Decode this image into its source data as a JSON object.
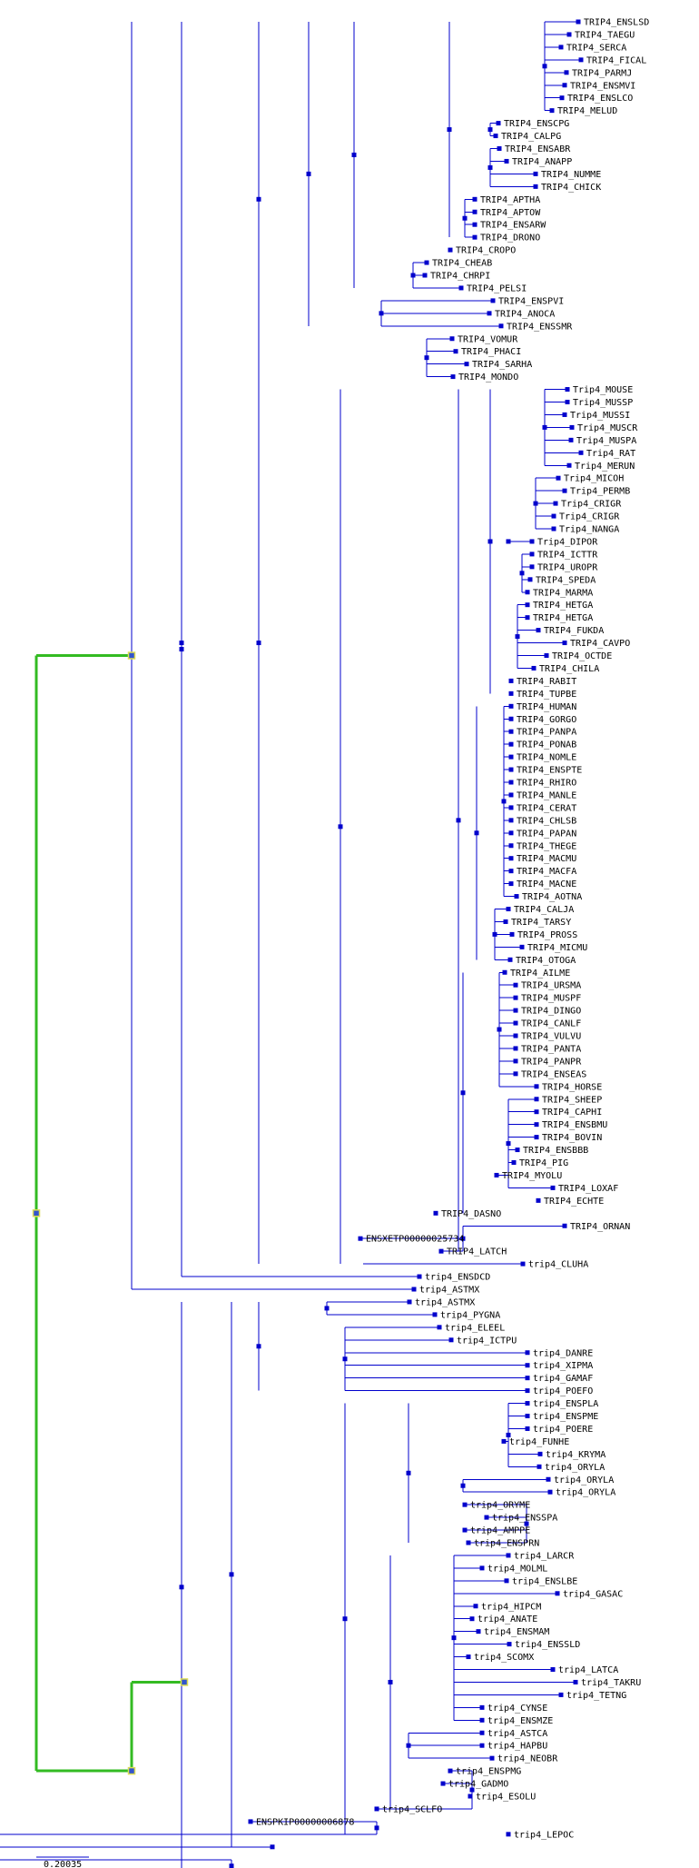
{
  "scale_bar": {
    "label": "0.20035"
  },
  "colors": {
    "branch": "#0000cc",
    "highlight": "#33bb22",
    "text": "#000000",
    "background": "#ffffff"
  },
  "leaves": [
    "TRIP4_ENSLSD",
    "TRIP4_TAEGU",
    "TRIP4_SERCA",
    "TRIP4_FICAL",
    "TRIP4_PARMJ",
    "TRIP4_ENSMVI",
    "TRIP4_ENSLCO",
    "TRIP4_MELUD",
    "TRIP4_ENSCPG",
    "TRIP4_CALPG",
    "TRIP4_ENSABR",
    "TRIP4_ANAPP",
    "TRIP4_NUMME",
    "TRIP4_CHICK",
    "TRIP4_APTHA",
    "TRIP4_APTOW",
    "TRIP4_ENSARW",
    "TRIP4_DRONO",
    "TRIP4_CROPO",
    "TRIP4_CHEAB",
    "TRIP4_CHRPI",
    "TRIP4_PELSI",
    "TRIP4_ENSPVI",
    "TRIP4_ANOCA",
    "TRIP4_ENSSMR",
    "TRIP4_VOMUR",
    "TRIP4_PHACI",
    "TRIP4_SARHA",
    "TRIP4_MONDO",
    "Trip4_MOUSE",
    "Trip4_MUSSP",
    "Trip4_MUSSI",
    "Trip4_MUSCR",
    "Trip4_MUSPA",
    "Trip4_RAT",
    "Trip4_MERUN",
    "Trip4_MICOH",
    "Trip4_PERMB",
    "Trip4_CRIGR",
    "Trip4_CRIGR",
    "Trip4_NANGA",
    "Trip4_DIPOR",
    "TRIP4_ICTTR",
    "TRIP4_UROPR",
    "TRIP4_SPEDA",
    "TRIP4_MARMA",
    "TRIP4_HETGA",
    "TRIP4_HETGA",
    "TRIP4_FUKDA",
    "TRIP4_CAVPO",
    "TRIP4_OCTDE",
    "TRIP4_CHILA",
    "TRIP4_RABIT",
    "TRIP4_TUPBE",
    "TRIP4_HUMAN",
    "TRIP4_GORGO",
    "TRIP4_PANPA",
    "TRIP4_PONAB",
    "TRIP4_NOMLE",
    "TRIP4_ENSPTE",
    "TRIP4_RHIRO",
    "TRIP4_MANLE",
    "TRIP4_CERAT",
    "TRIP4_CHLSB",
    "TRIP4_PAPAN",
    "TRIP4_THEGE",
    "TRIP4_MACMU",
    "TRIP4_MACFA",
    "TRIP4_MACNE",
    "TRIP4_AOTNA",
    "TRIP4_CALJA",
    "TRIP4_TARSY",
    "TRIP4_PROSS",
    "TRIP4_MICMU",
    "TRIP4_OTOGA",
    "TRIP4_AILME",
    "TRIP4_URSMA",
    "TRIP4_MUSPF",
    "TRIP4_DINGO",
    "TRIP4_CANLF",
    "TRIP4_VULVU",
    "TRIP4_PANTA",
    "TRIP4_PANPR",
    "TRIP4_ENSEAS",
    "TRIP4_HORSE",
    "TRIP4_SHEEP",
    "TRIP4_CAPHI",
    "TRIP4_ENSBMU",
    "TRIP4_BOVIN",
    "TRIP4_ENSBBB",
    "TRIP4_PIG",
    "TRIP4_MYOLU",
    "TRIP4_LOXAF",
    "TRIP4_ECHTE",
    "TRIP4_DASNO",
    "TRIP4_ORNAN",
    "ENSXETP00000025734",
    "TRIP4_LATCH",
    "trip4_CLUHA",
    "trip4_ENSDCD",
    "trip4_ASTMX",
    "trip4_ASTMX",
    "trip4_PYGNA",
    "trip4_ELEEL",
    "trip4_ICTPU",
    "trip4_DANRE",
    "trip4_XIPMA",
    "trip4_GAMAF",
    "trip4_POEFO",
    "trip4_ENSPLA",
    "trip4_ENSPME",
    "trip4_POERE",
    "trip4_FUNHE",
    "trip4_KRYMA",
    "trip4_ORYLA",
    "trip4_ORYLA",
    "trip4_ORYLA",
    "trip4_ORYME",
    "trip4_ENSSPA",
    "trip4_AMPPE",
    "trip4_ENSPRN",
    "trip4_LARCR",
    "trip4_MOLML",
    "trip4_ENSLBE",
    "trip4_GASAC",
    "trip4_HIPCM",
    "trip4_ANATE",
    "trip4_ENSMAM",
    "trip4_ENSSLD",
    "trip4_SCOMX",
    "trip4_LATCA",
    "trip4_TAKRU",
    "trip4_TETNG",
    "trip4_CYNSE",
    "trip4_ENSMZE",
    "trip4_ASTCA",
    "trip4_HAPBU",
    "trip4_NEOBR",
    "trip4_ENSPMG",
    "trip4_GADMO",
    "trip4_ESOLU",
    "trip4_SCLFO",
    "ENSPKIP00000006878",
    "trip4_LEPOC"
  ]
}
